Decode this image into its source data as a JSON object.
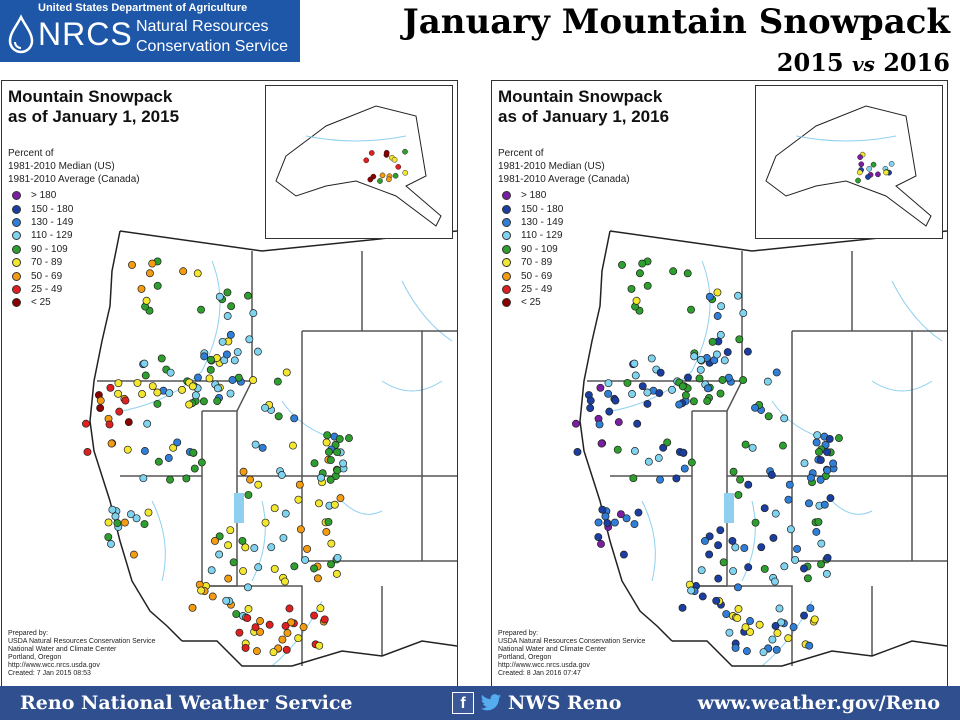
{
  "logo": {
    "agency": "United States Department of Agriculture",
    "acronym": "NRCS",
    "name_line1": "Natural Resources",
    "name_line2": "Conservation Service"
  },
  "header": {
    "title": "January Mountain Snowpack",
    "year_a": "2015",
    "vs": "vs",
    "year_b": "2016"
  },
  "maps": [
    {
      "title_line1": "Mountain Snowpack",
      "title_line2": "as of January 1, 2015",
      "desc": [
        "Percent of",
        "1981-2010 Median (US)",
        "1981-2010 Average (Canada)"
      ],
      "credits": [
        "Prepared by:",
        "USDA Natural Resources Conservation Service",
        "National Water and Climate Center",
        "Portland, Oregon",
        "http://www.wcc.nrcs.usda.gov",
        "Created:   7 Jan 2015   08:53"
      ]
    },
    {
      "title_line1": "Mountain Snowpack",
      "title_line2": "as of January 1, 2016",
      "desc": [
        "Percent of",
        "1981-2010 Median (US)",
        "1981-2010 Average (Canada)"
      ],
      "credits": [
        "Prepared by:",
        "USDA Natural Resources Conservation Service",
        "National Water and Climate Center",
        "Portland, Oregon",
        "http://www.wcc.nrcs.usda.gov",
        "Created:   8 Jan 2016   07:47"
      ]
    }
  ],
  "legend": [
    {
      "label": "> 180",
      "color": "#7b1fa2"
    },
    {
      "label": "150 - 180",
      "color": "#1a3fa0"
    },
    {
      "label": "130 - 149",
      "color": "#2f7fd8"
    },
    {
      "label": "110 - 129",
      "color": "#7fd3ee"
    },
    {
      "label": "90 - 109",
      "color": "#2e9e2e"
    },
    {
      "label": "70 - 89",
      "color": "#f2e62e"
    },
    {
      "label": "50 - 69",
      "color": "#f39c12"
    },
    {
      "label": "25 - 49",
      "color": "#e02020"
    },
    {
      "label": "< 25",
      "color": "#8b0000"
    }
  ],
  "footer": {
    "left": "Reno National Weather Service",
    "facebook_glyph": "f",
    "social": "NWS Reno",
    "right": "www.weather.gov/Reno"
  }
}
